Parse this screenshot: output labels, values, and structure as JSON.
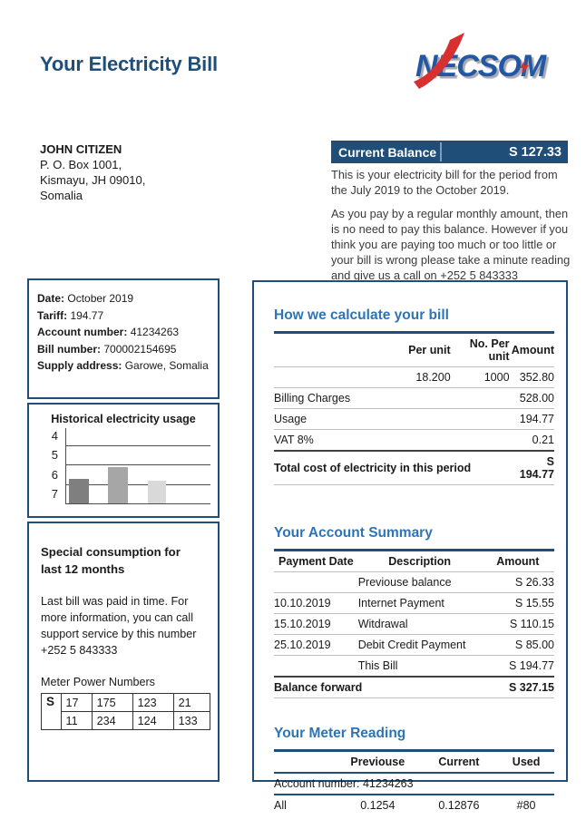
{
  "page": {
    "title": "Your Electricity Bill",
    "brand": "NECSOM"
  },
  "customer": {
    "name": "JOHN CITIZEN",
    "address_line1": "P. O. Box 1001,",
    "address_line2": "Kismayu, JH 09010,",
    "address_line3": "Somalia"
  },
  "balance": {
    "label": "Current Balance",
    "amount": "S 127.33",
    "period_text": "This is your electricity bill for the period from the July 2019 to the October 2019.",
    "note_text": "As you pay by a regular monthly amount, then is no need to pay this balance. However if you think you are paying too much or too little or your bill is wrong please take a minute reading and give us a call on +252 5 843333"
  },
  "account_info": {
    "date_label": "Date:",
    "date": "October 2019",
    "tariff_label": "Tariff:",
    "tariff": "194.77",
    "account_label": "Account number:",
    "account": "41234263",
    "bill_label": "Bill number:",
    "bill": "700002154695",
    "supply_label": "Supply address:",
    "supply": "Garowe, Somalia"
  },
  "chart_data": {
    "type": "bar",
    "title": "Historical electricity usage",
    "y_tick_labels": [
      "4",
      "5",
      "6",
      "7"
    ],
    "categories": [
      "bar-1",
      "bar-2",
      "bar-3"
    ],
    "values": [
      33,
      48,
      30
    ],
    "value_unit": "relative-height-percent-of-plot",
    "bar_colors": [
      "#7f7f7f",
      "#a6a6a6",
      "#d9d9d9"
    ],
    "grid": true,
    "legend": false
  },
  "special": {
    "heading": "Special consumption for last 12 months",
    "body": "Last bill was paid in time. For more information, you can call support service by this number +252 5 843333",
    "meter_label": "Meter Power Numbers",
    "row_header": "S",
    "rows": [
      [
        "17",
        "175",
        "123",
        "21"
      ],
      [
        "11",
        "234",
        "124",
        "133"
      ]
    ]
  },
  "calc": {
    "heading": "How we calculate your bill",
    "headers": [
      "",
      "Per unit",
      "No. Per unit",
      "Amount"
    ],
    "rows": [
      [
        "",
        "18.200",
        "1000",
        "352.80"
      ],
      [
        "Billing Charges",
        "",
        "",
        "528.00"
      ],
      [
        "Usage",
        "",
        "",
        "194.77"
      ],
      [
        "VAT 8%",
        "",
        "",
        "0.21"
      ]
    ],
    "total_label": "Total cost of electricity in this period",
    "total_amount": "S 194.77"
  },
  "summary": {
    "heading": "Your Account Summary",
    "headers": [
      "Payment Date",
      "Description",
      "Amount"
    ],
    "rows": [
      [
        "",
        "Previouse balance",
        "S 26.33"
      ],
      [
        "10.10.2019",
        "Internet Payment",
        "S 15.55"
      ],
      [
        "15.10.2019",
        "Witdrawal",
        "S 110.15"
      ],
      [
        "25.10.2019",
        "Debit Credit Payment",
        "S 85.00"
      ],
      [
        "",
        "This Bill",
        "S 194.77"
      ]
    ],
    "total_label": "Balance  forward",
    "total_amount": "S 327.15"
  },
  "meter_reading": {
    "heading": "Your Meter Reading",
    "headers": [
      "",
      "Previouse",
      "Current",
      "Used"
    ],
    "account_line": "Account number: 41234263",
    "row": [
      "All",
      "0.1254",
      "0.12876",
      "#80"
    ]
  },
  "colors": {
    "navy": "#1f4e79",
    "section_blue": "#2e74b5",
    "logo_blue": "#2257a4",
    "logo_red": "#d83030",
    "rule_gray": "#bfbfbf"
  }
}
